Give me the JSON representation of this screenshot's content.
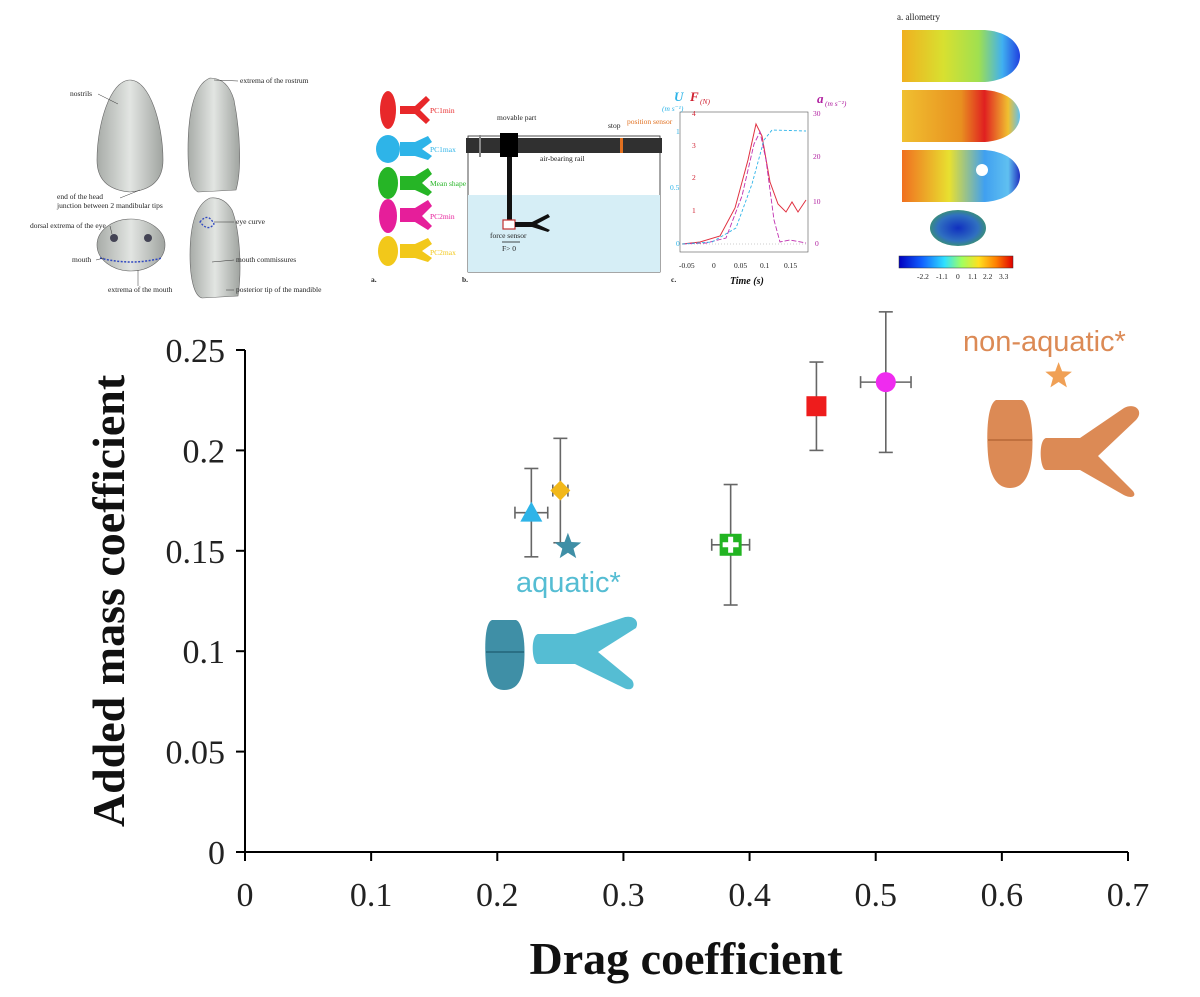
{
  "colors": {
    "aquatic": "#55bdd3",
    "aquatic_dark": "#3f8fa6",
    "non_aquatic": "#dc8a55",
    "non_aquatic_dark": "#c0703e",
    "axis": "#000000"
  },
  "inset_head": {
    "labels": [
      "nostrils",
      "extrema of the rostrum",
      "end of the head",
      "junction between 2 mandibular tips",
      "dorsal extrema of the eye",
      "eye curve",
      "mouth",
      "mouth commissures",
      "extrema of the mouth",
      "posterior tip of the mandible"
    ]
  },
  "inset_setup": {
    "shapes": [
      {
        "label": "PC1min",
        "color": "#e8282a"
      },
      {
        "label": "PC1max",
        "color": "#2eb4e8"
      },
      {
        "label": "Mean shape",
        "color": "#26b526"
      },
      {
        "label": "PC2min",
        "color": "#e61e9a"
      },
      {
        "label": "PC2max",
        "color": "#f2c81a"
      }
    ],
    "panel_a": "a.",
    "panel_b": "b.",
    "movable_part": "movable part",
    "stop": "stop",
    "position_sensor": "position sensor",
    "air_bearing_rail": "air-bearing rail",
    "force_sensor": "force sensor",
    "force_note": "F> 0"
  },
  "inset_time": {
    "panel": "c.",
    "u_label": "U",
    "u_unit": "(m s⁻¹)",
    "f_label": "F",
    "f_unit": "(N)",
    "a_label": "a",
    "a_unit": "(m s⁻²)",
    "x_title": "Time (s)",
    "x_ticks": [
      "-0.05",
      "0",
      "0.05",
      "0.1",
      "0.15"
    ],
    "u_ticks": [
      "0",
      "0.5",
      "1"
    ],
    "f_ticks": [
      "1",
      "2",
      "3",
      "4"
    ],
    "a_ticks": [
      "0",
      "10",
      "20",
      "30"
    ]
  },
  "inset_allometry": {
    "title": "a. allometry",
    "colorbar_ticks": [
      "-2.2",
      "-1.1",
      "0",
      "1.1",
      "2.2",
      "3.3"
    ]
  },
  "chart_data": {
    "type": "scatter",
    "xlabel": "Drag coefficient",
    "ylabel": "Added mass coefficient",
    "xlim": [
      0,
      0.7
    ],
    "ylim": [
      0,
      0.25
    ],
    "x_ticks": [
      "0",
      "0.1",
      "0.2",
      "0.3",
      "0.4",
      "0.5",
      "0.6",
      "0.7"
    ],
    "y_ticks": [
      "0",
      "0.05",
      "0.1",
      "0.15",
      "0.2",
      "0.25"
    ],
    "points": [
      {
        "marker": "triangle",
        "color": "#2eb4e8",
        "x": 0.227,
        "y": 0.169,
        "xerr": 0.013,
        "yerr": 0.022
      },
      {
        "marker": "diamond",
        "color": "#f2b81a",
        "x": 0.25,
        "y": 0.18,
        "xerr": 0.006,
        "yerr": 0.026
      },
      {
        "marker": "square",
        "color": "#ee1c1c",
        "x": 0.453,
        "y": 0.222,
        "xerr": 0.004,
        "yerr": 0.022
      },
      {
        "marker": "circle",
        "color": "#ef2bef",
        "x": 0.508,
        "y": 0.234,
        "xerr": 0.02,
        "yerr": 0.035
      },
      {
        "marker": "cross-square",
        "color": "#22b422",
        "x": 0.385,
        "y": 0.153,
        "xerr": 0.015,
        "yerr": 0.03
      }
    ],
    "group_means": [
      {
        "label": "aquatic*",
        "marker": "star",
        "color": "#3f8fa6",
        "x": 0.256,
        "y": 0.152
      },
      {
        "label": "non-aquatic*",
        "marker": "star",
        "color": "#f0a055",
        "x": 0.645,
        "y": 0.237
      }
    ]
  }
}
